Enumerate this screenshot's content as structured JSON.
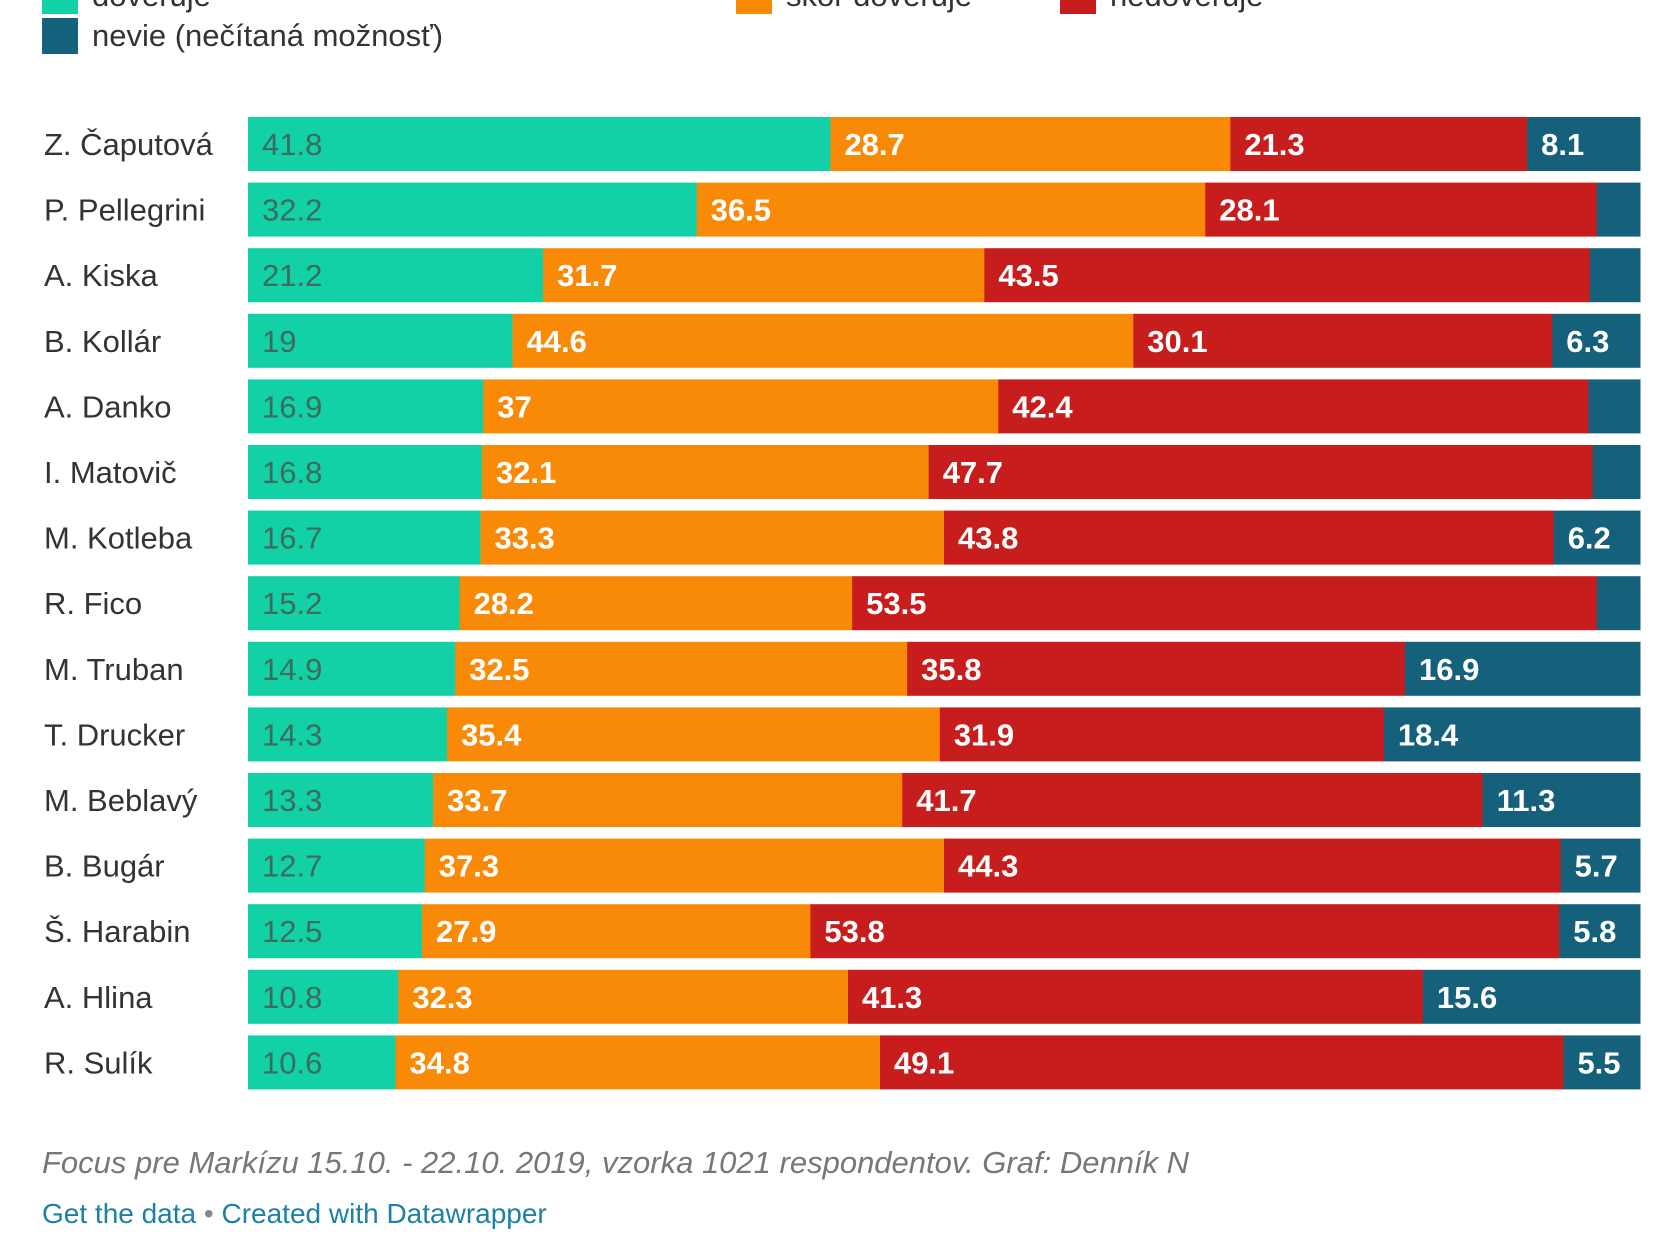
{
  "legend": [
    {
      "label": "dôveruje",
      "color": "#12d1a6"
    },
    {
      "label": "skôr dôveruje",
      "color": "#f88a08"
    },
    {
      "label": "nedôveruje",
      "color": "#c71e1d"
    },
    {
      "label": "nevie (nečítaná možnosť)",
      "color": "#15607a"
    }
  ],
  "chart_data": {
    "type": "bar",
    "orientation": "horizontal",
    "stacked": true,
    "categories": [
      "Z. Čaputová",
      "P. Pellegrini",
      "A. Kiska",
      "B. Kollár",
      "A. Danko",
      "I. Matovič",
      "M. Kotleba",
      "R. Fico",
      "M. Truban",
      "T. Drucker",
      "M. Beblavý",
      "B. Bugár",
      "Š. Harabin",
      "A. Hlina",
      "R. Sulík"
    ],
    "series": [
      {
        "name": "dôveruje",
        "color": "#12d1a6",
        "label_color": "#3d6b5e",
        "values": [
          41.8,
          32.2,
          21.2,
          19,
          16.9,
          16.8,
          16.7,
          15.2,
          14.9,
          14.3,
          13.3,
          12.7,
          12.5,
          10.8,
          10.6
        ]
      },
      {
        "name": "skôr dôveruje",
        "color": "#f88a08",
        "label_color": "#ffffff",
        "values": [
          28.7,
          36.5,
          31.7,
          44.6,
          37,
          32.1,
          33.3,
          28.2,
          32.5,
          35.4,
          33.7,
          37.3,
          27.9,
          32.3,
          34.8
        ]
      },
      {
        "name": "nedôveruje",
        "color": "#c71e1d",
        "label_color": "#ffffff",
        "values": [
          21.3,
          28.1,
          43.5,
          30.1,
          42.4,
          47.7,
          43.8,
          53.5,
          35.8,
          31.9,
          41.7,
          44.3,
          53.8,
          41.3,
          49.1
        ]
      },
      {
        "name": "nevie (nečítaná možnosť)",
        "color": "#15607a",
        "label_color": "#ffffff",
        "values": [
          8.1,
          3.1,
          3.6,
          6.3,
          3.7,
          3.4,
          6.2,
          3.1,
          16.9,
          18.4,
          11.3,
          5.7,
          5.8,
          15.6,
          5.5
        ],
        "value_labels": [
          "8.1",
          "",
          "",
          "6.3",
          "",
          "",
          "6.2",
          "",
          "16.9",
          "18.4",
          "11.3",
          "5.7",
          "5.8",
          "15.6",
          "5.5"
        ]
      }
    ],
    "xlim": [
      0,
      100
    ]
  },
  "footer": {
    "source": "Focus pre Markízu 15.10. - 22.10. 2019, vzorka 1021 respondentov. Graf: Denník N",
    "get_data": "Get the data",
    "separator": "•",
    "created_with": "Created with Datawrapper"
  }
}
